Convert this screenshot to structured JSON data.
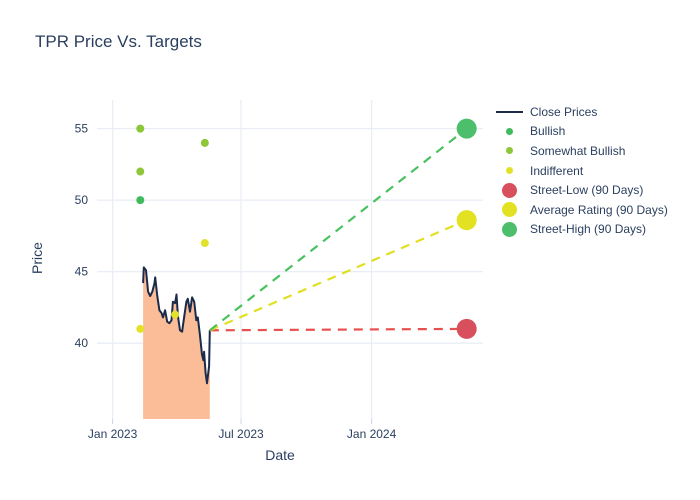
{
  "page": {
    "title": "TPR Price Vs. Targets"
  },
  "colors": {
    "text": "#2a3f5f",
    "grid": "#e9eef6",
    "tick": "#c8d4e3",
    "background": "#ffffff",
    "close_line": "#1c2b4a",
    "close_fill": "#fabd98",
    "bullish": "#3fba5d",
    "somewhat_bullish": "#8dc637",
    "indifferent": "#e2e22b",
    "street_low": "#d84f5d",
    "average_rating": "#e2e222",
    "street_high": "#4dbf6c"
  },
  "chart_data": {
    "type": "line",
    "title": "TPR Price Vs. Targets",
    "xlabel": "Date",
    "ylabel": "Price",
    "x_range": [
      "2022-12-10",
      "2024-06-06"
    ],
    "y_range": [
      34.7,
      57
    ],
    "grid": true,
    "legend_position": "right",
    "x_ticks": [
      {
        "date": "2023-01-01",
        "label": "Jan 2023"
      },
      {
        "date": "2023-07-01",
        "label": "Jul 2023"
      },
      {
        "date": "2024-01-01",
        "label": "Jan 2024"
      }
    ],
    "y_ticks": [
      40,
      45,
      50,
      55
    ],
    "close_prices": {
      "name": "Close Prices",
      "line_color": "#1c2b4a",
      "fill_color": "#fabd98",
      "points": [
        [
          "2023-02-13",
          44.2
        ],
        [
          "2023-02-14",
          45.3
        ],
        [
          "2023-02-17",
          45.1
        ],
        [
          "2023-02-20",
          43.6
        ],
        [
          "2023-02-23",
          43.3
        ],
        [
          "2023-02-26",
          43.6
        ],
        [
          "2023-03-01",
          44.2
        ],
        [
          "2023-03-02",
          44.6
        ],
        [
          "2023-03-05",
          43.3
        ],
        [
          "2023-03-08",
          42.3
        ],
        [
          "2023-03-11",
          42.1
        ],
        [
          "2023-03-13",
          41.8
        ],
        [
          "2023-03-16",
          42.3
        ],
        [
          "2023-03-19",
          41.5
        ],
        [
          "2023-03-22",
          41.4
        ],
        [
          "2023-03-25",
          41.6
        ],
        [
          "2023-03-27",
          42.9
        ],
        [
          "2023-03-30",
          42.8
        ],
        [
          "2023-04-01",
          43.4
        ],
        [
          "2023-04-03",
          41.9
        ],
        [
          "2023-04-06",
          40.9
        ],
        [
          "2023-04-09",
          40.8
        ],
        [
          "2023-04-12",
          41.9
        ],
        [
          "2023-04-15",
          42.9
        ],
        [
          "2023-04-17",
          43.1
        ],
        [
          "2023-04-20",
          42.2
        ],
        [
          "2023-04-23",
          43.2
        ],
        [
          "2023-04-26",
          42.9
        ],
        [
          "2023-04-29",
          41.6
        ],
        [
          "2023-05-01",
          41.8
        ],
        [
          "2023-05-04",
          40.6
        ],
        [
          "2023-05-07",
          39.2
        ],
        [
          "2023-05-09",
          38.8
        ],
        [
          "2023-05-10",
          39.4
        ],
        [
          "2023-05-12",
          37.9
        ],
        [
          "2023-05-14",
          37.2
        ],
        [
          "2023-05-15",
          37.6
        ],
        [
          "2023-05-17",
          38.4
        ],
        [
          "2023-05-18",
          40.9
        ]
      ]
    },
    "ratings": [
      {
        "label": "Bullish",
        "color": "#3fba5d",
        "points": [
          [
            "2023-02-09",
            50
          ]
        ]
      },
      {
        "label": "Somewhat Bullish",
        "color": "#8dc637",
        "points": [
          [
            "2023-02-09",
            55
          ],
          [
            "2023-02-09",
            52
          ],
          [
            "2023-05-11",
            54
          ]
        ]
      },
      {
        "label": "Indifferent",
        "color": "#e2e22b",
        "points": [
          [
            "2023-02-09",
            41
          ],
          [
            "2023-03-30",
            42
          ],
          [
            "2023-05-11",
            47
          ]
        ]
      }
    ],
    "targets": [
      {
        "label": "Street-Low (90 Days)",
        "color": "#d84f5d",
        "dash_color": "#e8504f",
        "start": [
          "2023-05-18",
          40.9
        ],
        "end": [
          "2024-05-14",
          41.0
        ]
      },
      {
        "label": "Average Rating (90 Days)",
        "color": "#e2e222",
        "dash_color": "#e0df20",
        "start": [
          "2023-05-18",
          40.9
        ],
        "end": [
          "2024-05-14",
          48.6
        ]
      },
      {
        "label": "Street-High (90 Days)",
        "color": "#4dbf6c",
        "dash_color": "#49c15f",
        "start": [
          "2023-05-18",
          40.9
        ],
        "end": [
          "2024-05-14",
          55.0
        ]
      }
    ],
    "legend": [
      {
        "label": "Close Prices",
        "marker": "line",
        "color": "#1c2b4a"
      },
      {
        "label": "Bullish",
        "marker": "dot-small",
        "color": "#3fba5d"
      },
      {
        "label": "Somewhat Bullish",
        "marker": "dot-small",
        "color": "#8dc637"
      },
      {
        "label": "Indifferent",
        "marker": "dot-small",
        "color": "#e2e22b"
      },
      {
        "label": "Street-Low (90 Days)",
        "marker": "dot-large",
        "color": "#d84f5d"
      },
      {
        "label": "Average Rating (90 Days)",
        "marker": "dot-large",
        "color": "#e2e222"
      },
      {
        "label": "Street-High (90 Days)",
        "marker": "dot-large",
        "color": "#4dbf6c"
      }
    ]
  }
}
